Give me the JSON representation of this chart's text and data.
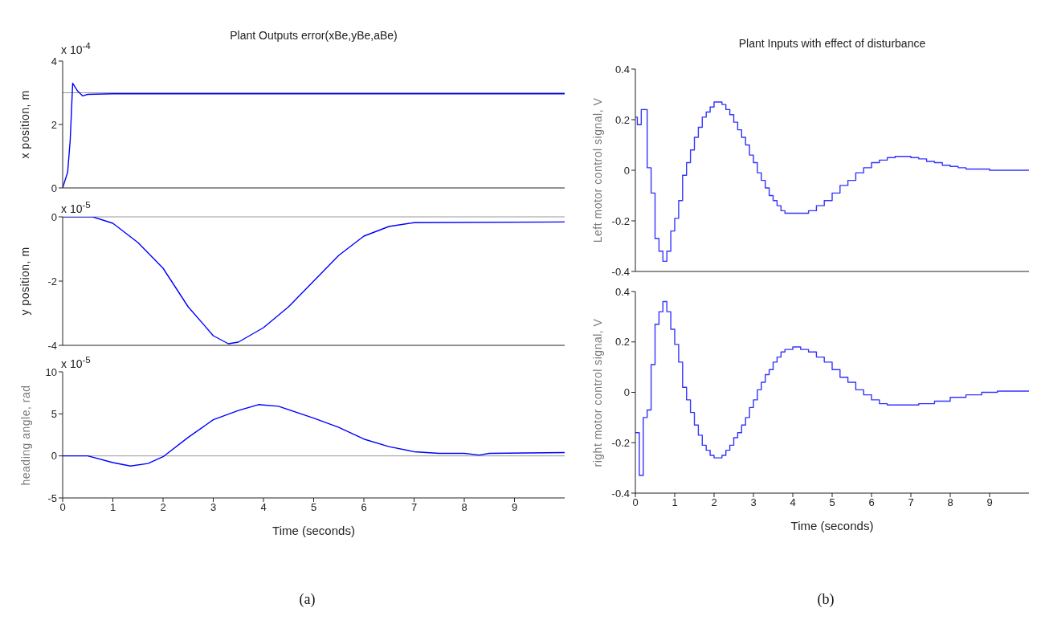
{
  "chart_data": [
    {
      "type": "line",
      "title": "Plant Outputs error(xBe,yBe,aBe)",
      "ylabel": "x position, m",
      "annotations": [
        "x 10$^{-4}$"
      ],
      "xlim": [
        0,
        10
      ],
      "xticks": [
        0,
        1,
        2,
        3,
        4,
        5,
        6,
        7,
        8,
        9
      ],
      "ylim": [
        0,
        4
      ],
      "yticks": [
        0,
        2,
        4
      ],
      "tick_labels": "y",
      "grid": false,
      "legend": false,
      "ref_lines": [
        {
          "axis": "y",
          "value": 3,
          "color": "#999999"
        }
      ],
      "series": [
        {
          "color": "#0000ff",
          "x": [
            0,
            0.1,
            0.15,
            0.2,
            0.3,
            0.4,
            0.5,
            1,
            10
          ],
          "values": [
            0,
            0.5,
            1.5,
            3.3,
            3.05,
            2.9,
            2.95,
            2.97,
            2.97
          ]
        }
      ]
    },
    {
      "type": "line",
      "ylabel": "y position, m",
      "annotations": [
        "x 10$^{-5}$"
      ],
      "xlim": [
        0,
        10
      ],
      "xticks": [
        0,
        1,
        2,
        3,
        4,
        5,
        6,
        7,
        8,
        9
      ],
      "ylim": [
        -4,
        0
      ],
      "yticks": [
        -4,
        -2,
        0
      ],
      "tick_labels": "y",
      "grid": false,
      "legend": false,
      "ref_lines": [
        {
          "axis": "y",
          "value": 0,
          "color": "#999999"
        }
      ],
      "series": [
        {
          "color": "#0000ff",
          "x": [
            0,
            0.6,
            1,
            1.5,
            2,
            2.5,
            3,
            3.3,
            3.5,
            4,
            4.5,
            5,
            5.5,
            6,
            6.5,
            7,
            10
          ],
          "values": [
            0,
            0,
            -0.2,
            -0.8,
            -1.6,
            -2.8,
            -3.7,
            -3.95,
            -3.9,
            -3.45,
            -2.8,
            -2.0,
            -1.2,
            -0.6,
            -0.3,
            -0.18,
            -0.16
          ]
        }
      ]
    },
    {
      "type": "line",
      "ylabel": "heading angle, rad",
      "xlabel": "Time (seconds)",
      "annotations": [
        "x 10$^{-5}$",
        "(a)"
      ],
      "xlim": [
        0,
        10
      ],
      "xticks": [
        0,
        1,
        2,
        3,
        4,
        5,
        6,
        7,
        8,
        9
      ],
      "ylim": [
        -5,
        10
      ],
      "yticks": [
        -5,
        0,
        5,
        10
      ],
      "grid": false,
      "legend": false,
      "ref_lines": [
        {
          "axis": "y",
          "value": 0,
          "color": "#999999"
        }
      ],
      "series": [
        {
          "color": "#0000ff",
          "x": [
            0,
            0.5,
            1,
            1.35,
            1.7,
            2,
            2.5,
            3,
            3.5,
            3.9,
            4.3,
            5,
            5.5,
            6,
            6.5,
            7,
            7.5,
            8,
            8.3,
            8.5,
            10
          ],
          "values": [
            0,
            0,
            -0.8,
            -1.2,
            -0.9,
            -0.1,
            2.2,
            4.3,
            5.4,
            6.1,
            5.9,
            4.5,
            3.4,
            2.0,
            1.1,
            0.5,
            0.3,
            0.3,
            0.1,
            0.3,
            0.4
          ]
        }
      ]
    },
    {
      "type": "step",
      "title": "Plant Inputs with effect of disturbance",
      "ylabel": "Left motor control signal, V",
      "xlim": [
        0,
        10
      ],
      "xticks": [
        0,
        1,
        2,
        3,
        4,
        5,
        6,
        7,
        8,
        9
      ],
      "ylim": [
        -0.4,
        0.4
      ],
      "yticks": [
        -0.4,
        -0.2,
        0,
        0.2,
        0.4
      ],
      "tick_labels": "y",
      "grid": false,
      "legend": false,
      "series": [
        {
          "color": "#3333ff",
          "x": [
            0,
            0.05,
            0.15,
            0.3,
            0.4,
            0.5,
            0.6,
            0.7,
            0.8,
            0.9,
            1.0,
            1.1,
            1.2,
            1.3,
            1.4,
            1.5,
            1.6,
            1.7,
            1.8,
            1.9,
            2.0,
            2.1,
            2.2,
            2.3,
            2.4,
            2.5,
            2.6,
            2.7,
            2.8,
            2.9,
            3.0,
            3.1,
            3.2,
            3.3,
            3.4,
            3.5,
            3.6,
            3.7,
            3.8,
            3.9,
            4.2,
            4.4,
            4.6,
            4.8,
            5.0,
            5.2,
            5.4,
            5.6,
            5.8,
            6.0,
            6.2,
            6.4,
            6.6,
            7.0,
            7.2,
            7.4,
            7.6,
            7.8,
            8.0,
            8.2,
            8.4,
            9.0,
            10
          ],
          "values": [
            0.21,
            0.18,
            0.24,
            0.01,
            -0.09,
            -0.27,
            -0.32,
            -0.36,
            -0.32,
            -0.24,
            -0.19,
            -0.12,
            -0.02,
            0.03,
            0.08,
            0.13,
            0.17,
            0.21,
            0.23,
            0.25,
            0.27,
            0.27,
            0.26,
            0.24,
            0.22,
            0.19,
            0.16,
            0.13,
            0.1,
            0.06,
            0.03,
            -0.01,
            -0.04,
            -0.07,
            -0.1,
            -0.12,
            -0.14,
            -0.16,
            -0.17,
            -0.17,
            -0.17,
            -0.16,
            -0.14,
            -0.12,
            -0.09,
            -0.06,
            -0.04,
            -0.01,
            0.01,
            0.03,
            0.04,
            0.05,
            0.055,
            0.05,
            0.045,
            0.035,
            0.03,
            0.02,
            0.015,
            0.01,
            0.005,
            0,
            0
          ]
        }
      ]
    },
    {
      "type": "step",
      "ylabel": "right motor control signal, V",
      "xlabel": "Time (seconds)",
      "annotations": [
        "(b)"
      ],
      "xlim": [
        0,
        10
      ],
      "xticks": [
        0,
        1,
        2,
        3,
        4,
        5,
        6,
        7,
        8,
        9
      ],
      "ylim": [
        -0.4,
        0.4
      ],
      "yticks": [
        -0.4,
        -0.2,
        0,
        0.2,
        0.4
      ],
      "grid": false,
      "legend": false,
      "series": [
        {
          "color": "#3333ff",
          "x": [
            0,
            0.1,
            0.2,
            0.3,
            0.4,
            0.5,
            0.6,
            0.7,
            0.8,
            0.9,
            1.0,
            1.1,
            1.2,
            1.3,
            1.4,
            1.5,
            1.6,
            1.7,
            1.8,
            1.9,
            2.0,
            2.2,
            2.3,
            2.4,
            2.5,
            2.6,
            2.7,
            2.8,
            2.9,
            3.0,
            3.1,
            3.2,
            3.3,
            3.4,
            3.5,
            3.6,
            3.7,
            3.8,
            4.0,
            4.2,
            4.4,
            4.6,
            4.8,
            5.0,
            5.2,
            5.4,
            5.6,
            5.8,
            6.0,
            6.2,
            6.4,
            7.0,
            7.2,
            7.6,
            8.0,
            8.4,
            8.8,
            9.2,
            10
          ],
          "values": [
            -0.16,
            -0.33,
            -0.1,
            -0.07,
            0.11,
            0.27,
            0.32,
            0.36,
            0.32,
            0.25,
            0.19,
            0.12,
            0.02,
            -0.03,
            -0.08,
            -0.13,
            -0.17,
            -0.21,
            -0.23,
            -0.25,
            -0.26,
            -0.25,
            -0.23,
            -0.21,
            -0.18,
            -0.16,
            -0.13,
            -0.1,
            -0.06,
            -0.03,
            0.01,
            0.04,
            0.07,
            0.09,
            0.12,
            0.14,
            0.16,
            0.17,
            0.18,
            0.17,
            0.16,
            0.14,
            0.12,
            0.09,
            0.06,
            0.04,
            0.01,
            -0.01,
            -0.03,
            -0.045,
            -0.05,
            -0.05,
            -0.045,
            -0.035,
            -0.02,
            -0.01,
            0,
            0.005,
            0.005
          ]
        }
      ]
    }
  ]
}
